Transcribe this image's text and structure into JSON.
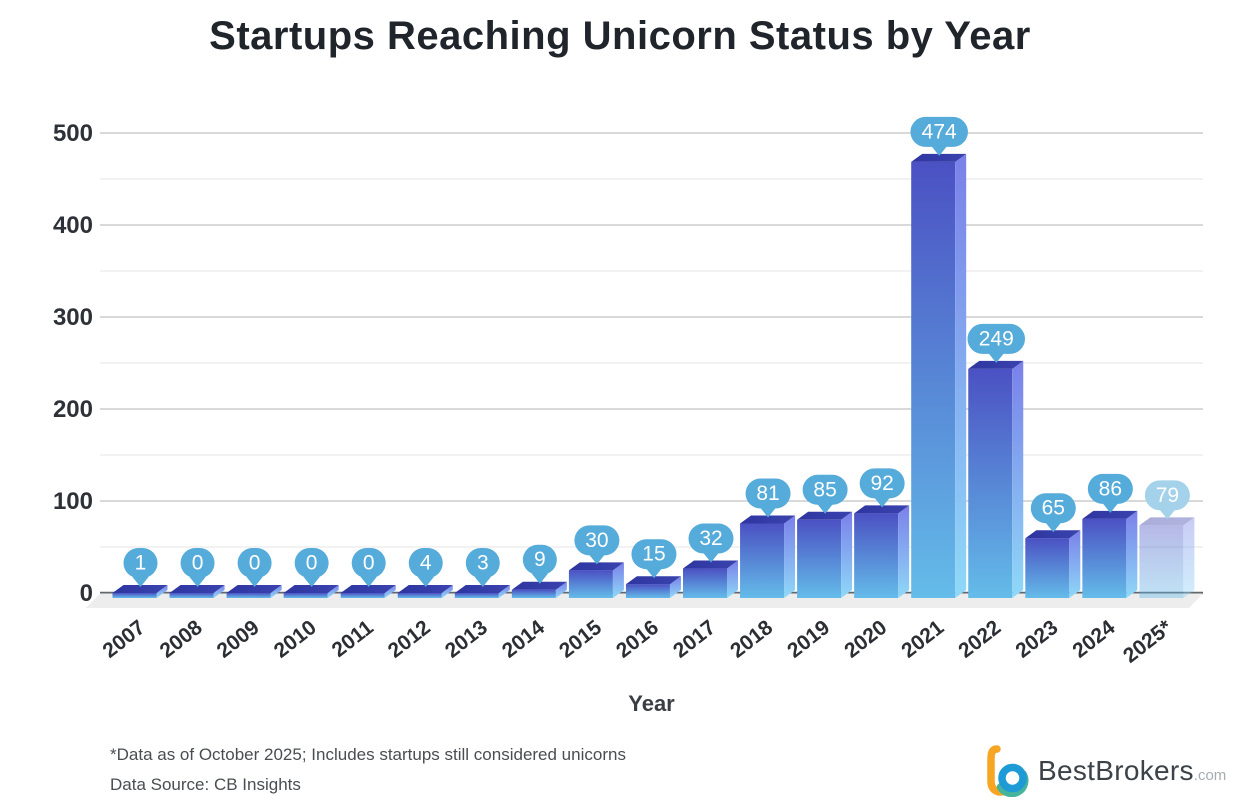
{
  "header": {
    "title": "Startups Reaching Unicorn Status by Year"
  },
  "chart_data": {
    "type": "bar",
    "title": "Startups Reaching Unicorn Status by Year",
    "xlabel": "Year",
    "ylabel": "",
    "categories": [
      "2007",
      "2008",
      "2009",
      "2010",
      "2011",
      "2012",
      "2013",
      "2014",
      "2015",
      "2016",
      "2017",
      "2018",
      "2019",
      "2020",
      "2021",
      "2022",
      "2023",
      "2024",
      "2025*"
    ],
    "values": [
      1,
      0,
      0,
      0,
      0,
      4,
      3,
      9,
      30,
      15,
      32,
      81,
      85,
      92,
      474,
      249,
      65,
      86,
      79
    ],
    "ylim": [
      0,
      500
    ],
    "y_ticks": [
      0,
      100,
      200,
      300,
      400,
      500
    ],
    "y_minor_step": 50,
    "grid": true,
    "legend": "none",
    "value_label_style": "speech-bubble",
    "last_bar_faded": true,
    "colors": {
      "bubble": "#55abd9",
      "bubble_faded": "#a4d2eb",
      "bubble_text": "#ffffff",
      "bar_front_top": "#4b51c3",
      "bar_front_bottom": "#64bce9",
      "bar_side_top": "#7a80e9",
      "bar_side_bottom": "#8fd9f8",
      "bar_top_face": "#2e35a0",
      "bar_top_face2": "#3a43ae",
      "grid_major": "#d9d9d9",
      "grid_minor": "#eaeaea",
      "axis_line": "#63666b",
      "floor": "#ededed",
      "tick_text": "#2e3238"
    }
  },
  "footer": {
    "note1": "*Data as of October 2025; Includes startups still considered unicorns",
    "note2": "Data Source: CB Insights",
    "brand": "BestBrokers",
    "brand_suffix": ".com"
  }
}
